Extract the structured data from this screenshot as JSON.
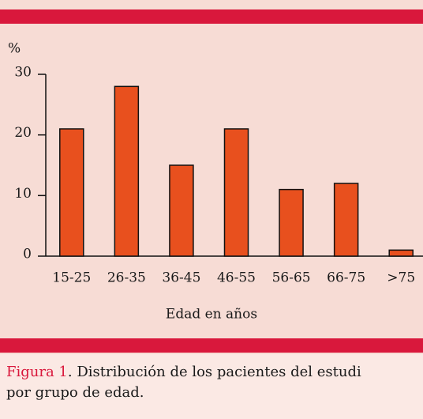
{
  "chart_data": {
    "type": "bar",
    "y_label": "%",
    "x_label": "Edad en años",
    "categories": [
      "15-25",
      "26-35",
      "36-45",
      "46-55",
      "56-65",
      "66-75",
      ">75"
    ],
    "values": [
      21,
      28,
      15,
      21,
      11,
      12,
      1
    ],
    "color": "#e8501e",
    "ylim": [
      0,
      30
    ],
    "yticks": [
      0,
      10,
      20,
      30
    ],
    "grid": false
  },
  "caption": {
    "label": "Figura 1",
    "lines": [
      ". Distribución de los pacientes del estudi",
      "por grupo de edad."
    ]
  }
}
